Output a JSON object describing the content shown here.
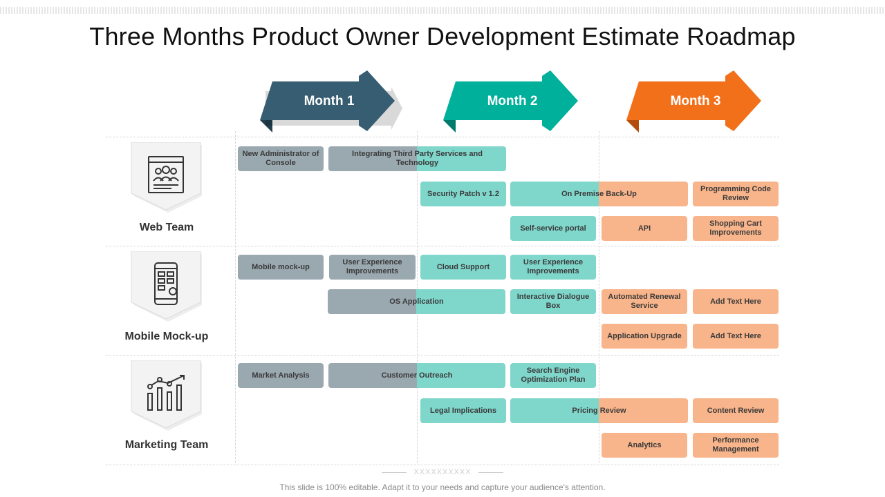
{
  "title": "Three Months Product Owner Development Estimate Roadmap",
  "months": [
    {
      "label": "Month 1",
      "color": "#365d71",
      "shadow": "#223f4e"
    },
    {
      "label": "Month 2",
      "color": "#00b09b",
      "shadow": "#007a6c"
    },
    {
      "label": "Month 3",
      "color": "#f27019",
      "shadow": "#b44d0c"
    }
  ],
  "teams": [
    {
      "label": "Web Team",
      "icon": "browser-team-icon"
    },
    {
      "label": "Mobile Mock-up",
      "icon": "mobile-settings-icon"
    },
    {
      "label": "Marketing Team",
      "icon": "growth-chart-icon"
    }
  ],
  "tasks": {
    "web": [
      "New Administrator of Console",
      "Integrating Third Party Services and Technology",
      "Security Patch v 1.2",
      "On Premise Back-Up",
      "Programming Code Review",
      "Self-service portal",
      "API",
      "Shopping Cart Improvements"
    ],
    "mobile": [
      "Mobile mock-up",
      "User Experience Improvements",
      "Cloud Support",
      "User Experience Improvements",
      "OS Application",
      "Interactive Dialogue Box",
      "Automated Renewal Service",
      "Add Text Here",
      "Application Upgrade",
      "Add Text Here"
    ],
    "marketing": [
      "Market Analysis",
      "Customer Outreach",
      "Search Engine Optimization Plan",
      "Legal Implications",
      "Pricing Review",
      "Content Review",
      "Analytics",
      "Performance Management"
    ]
  },
  "divider": "XXXXXXXXXX",
  "footer": "This slide is 100% editable. Adapt it to your needs and capture your audience's attention."
}
